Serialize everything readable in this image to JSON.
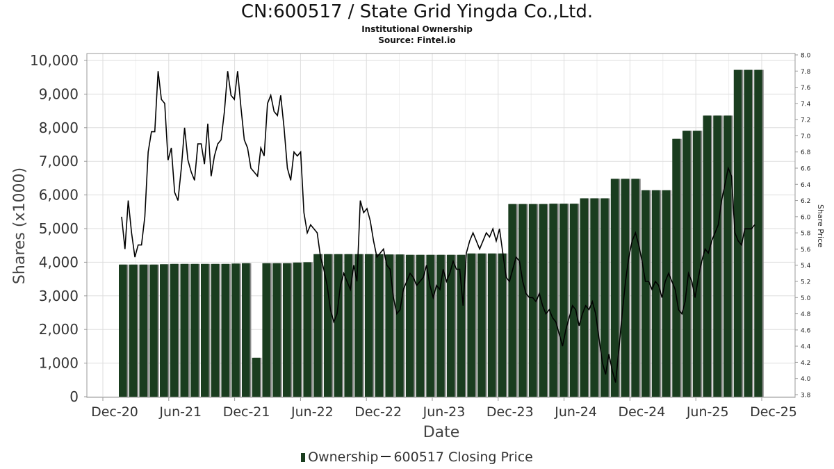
{
  "header": {
    "title": "CN:600517 / State Grid Yingda Co.,Ltd.",
    "subtitle": "Institutional Ownership",
    "source": "Source: Fintel.io"
  },
  "legend": {
    "ownership_label": "Ownership",
    "price_label": "600517 Closing Price"
  },
  "colors": {
    "bar": "#1a3d1f",
    "bar_shadow": "#8a8a8a",
    "price_line": "#000000",
    "grid": "#dddddd"
  },
  "chart_data": {
    "type": "bar",
    "title": "CN:600517 / State Grid Yingda Co.,Ltd.",
    "xlabel": "Date",
    "ylabel": "Shares (x1000)",
    "y2label": "Share Price",
    "ylim": [
      0,
      10000
    ],
    "y2lim": [
      3.8,
      8.0
    ],
    "grid": true,
    "legend_position": "bottom",
    "x_ticks": [
      "Dec-20",
      "Jun-21",
      "Dec-21",
      "Jun-22",
      "Dec-22",
      "Jun-23",
      "Dec-23",
      "Jun-24",
      "Dec-24",
      "Jun-25",
      "Dec-25"
    ],
    "y_ticks": [
      "0",
      "1,000",
      "2,000",
      "3,000",
      "4,000",
      "5,000",
      "6,000",
      "7,000",
      "8,000",
      "9,000",
      "10,000"
    ],
    "y2_ticks": [
      "3.8",
      "4.0",
      "4.2",
      "4.4",
      "4.6",
      "4.8",
      "5.0",
      "5.2",
      "5.4",
      "5.6",
      "5.8",
      "6.0",
      "6.2",
      "6.4",
      "6.6",
      "6.8",
      "7.0",
      "7.2",
      "7.4",
      "7.6",
      "7.8",
      "8.0"
    ],
    "series": [
      {
        "name": "Ownership",
        "kind": "bar",
        "values": [
          3930,
          3930,
          3930,
          3930,
          3940,
          3950,
          3950,
          3950,
          3950,
          3950,
          3950,
          3960,
          3970,
          1160,
          3970,
          3970,
          3970,
          3990,
          4000,
          4240,
          4240,
          4240,
          4240,
          4240,
          4240,
          4240,
          4230,
          4230,
          4220,
          4220,
          4220,
          4220,
          4220,
          4220,
          4260,
          4260,
          4260,
          4260,
          5730,
          5730,
          5730,
          5730,
          5740,
          5740,
          5740,
          5900,
          5900,
          5900,
          6480,
          6480,
          6480,
          6140,
          6140,
          6140,
          7670,
          7910,
          7910,
          8360,
          8360,
          8360,
          9720,
          9720,
          9720
        ]
      },
      {
        "name": "600517 Closing Price",
        "kind": "line",
        "values": [
          6.0,
          5.6,
          6.2,
          5.8,
          5.5,
          5.65,
          5.65,
          6.0,
          6.8,
          7.05,
          7.05,
          7.8,
          7.45,
          7.4,
          6.7,
          6.85,
          6.3,
          6.2,
          6.6,
          7.1,
          6.7,
          6.55,
          6.45,
          6.9,
          6.9,
          6.65,
          7.15,
          6.5,
          6.75,
          6.9,
          6.95,
          7.3,
          7.8,
          7.5,
          7.45,
          7.8,
          7.35,
          6.95,
          6.85,
          6.6,
          6.55,
          6.5,
          6.85,
          6.75,
          7.4,
          7.5,
          7.3,
          7.25,
          7.5,
          7.1,
          6.6,
          6.45,
          6.8,
          6.75,
          6.8,
          6.05,
          5.8,
          5.9,
          5.85,
          5.8,
          5.5,
          5.35,
          5.15,
          4.85,
          4.7,
          4.8,
          5.15,
          5.3,
          5.2,
          5.1,
          5.4,
          5.2,
          6.2,
          6.05,
          6.1,
          5.95,
          5.7,
          5.5,
          5.55,
          5.6,
          5.4,
          5.35,
          5.0,
          4.8,
          4.85,
          5.1,
          5.2,
          5.3,
          5.25,
          5.15,
          5.2,
          5.25,
          5.4,
          5.15,
          5.0,
          5.15,
          5.1,
          5.35,
          5.2,
          5.3,
          5.45,
          5.35,
          5.35,
          4.9,
          5.55,
          5.7,
          5.8,
          5.7,
          5.6,
          5.7,
          5.8,
          5.75,
          5.85,
          5.7,
          5.85,
          5.55,
          5.25,
          5.2,
          5.35,
          5.5,
          5.45,
          5.2,
          5.05,
          5.0,
          5.0,
          4.95,
          5.05,
          4.9,
          4.8,
          4.85,
          4.75,
          4.7,
          4.55,
          4.4,
          4.6,
          4.75,
          4.9,
          4.85,
          4.65,
          4.8,
          4.9,
          4.85,
          4.95,
          4.8,
          4.5,
          4.2,
          4.05,
          4.3,
          4.1,
          3.95,
          4.35,
          4.8,
          5.2,
          5.5,
          5.7,
          5.8,
          5.65,
          5.45,
          5.2,
          5.2,
          5.1,
          5.2,
          5.15,
          5.0,
          5.2,
          5.3,
          5.2,
          5.1,
          4.85,
          4.8,
          4.95,
          5.3,
          5.2,
          5.0,
          5.25,
          5.45,
          5.6,
          5.55,
          5.7,
          5.8,
          5.9,
          6.2,
          6.4,
          6.6,
          6.5,
          5.8,
          5.7,
          5.65,
          5.85,
          5.85,
          5.85,
          5.9
        ]
      }
    ]
  }
}
